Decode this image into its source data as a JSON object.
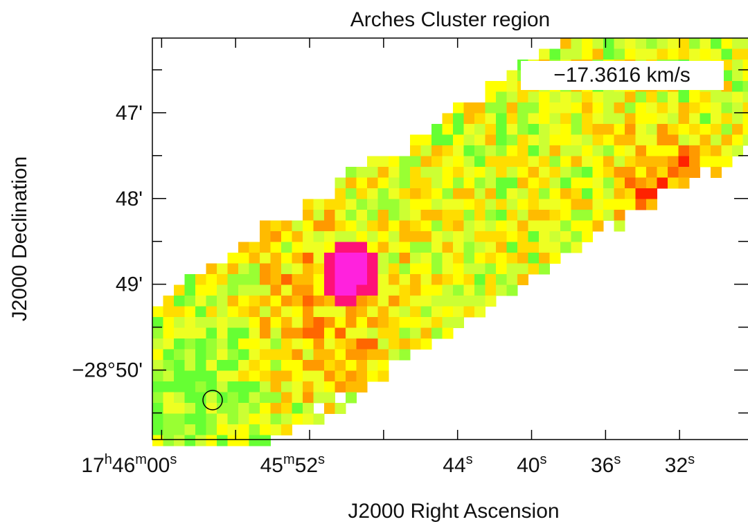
{
  "chart_data": {
    "type": "image",
    "title": "Arches Cluster region",
    "annotation": "−17.3616 km/s",
    "xlabel": "J2000 Right Ascension",
    "ylabel": "J2000 Declination",
    "xlim": [
      60.5,
      28.3
    ],
    "xticks": [
      {
        "value": 60,
        "label": [
          "17",
          "h",
          "46",
          "m",
          "00",
          "s"
        ]
      },
      {
        "value": 52,
        "label": [
          "45",
          "m",
          "52",
          "s"
        ]
      },
      {
        "value": 44,
        "label": [
          "44",
          "s"
        ]
      },
      {
        "value": 40,
        "label": [
          "40",
          "s"
        ]
      },
      {
        "value": 36,
        "label": [
          "36",
          "s"
        ]
      },
      {
        "value": 32,
        "label": [
          "32",
          "s"
        ]
      }
    ],
    "xminorticks": [
      56,
      48
    ],
    "ylim": [
      50.81,
      46.13
    ],
    "yticks": [
      {
        "value": 47,
        "label": "47'"
      },
      {
        "value": 48,
        "label": "48'"
      },
      {
        "value": 49,
        "label": "49'"
      },
      {
        "value": 50,
        "label": "−28°50'"
      }
    ],
    "yminorticks": [
      46.5,
      47.5,
      48.5,
      49.5,
      50.5
    ]
  }
}
